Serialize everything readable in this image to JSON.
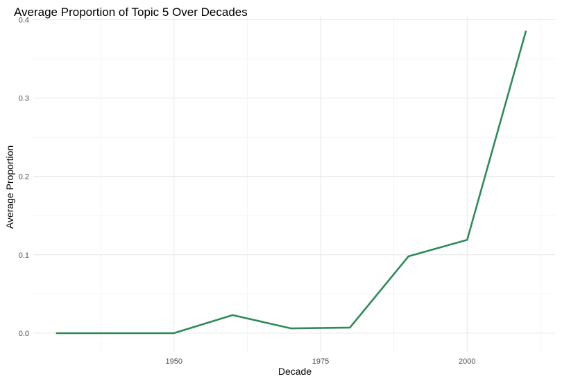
{
  "chart_data": {
    "type": "line",
    "title": "Average Proportion of Topic 5 Over Decades",
    "xlabel": "Decade",
    "ylabel": "Average Proportion",
    "x": [
      1930,
      1940,
      1950,
      1960,
      1970,
      1980,
      1990,
      2000,
      2010
    ],
    "series": [
      {
        "values": [
          0.0,
          0.0,
          0.0,
          0.023,
          0.006,
          0.007,
          0.098,
          0.119,
          0.385
        ]
      }
    ],
    "xlim": [
      1926,
      2015
    ],
    "ylim": [
      -0.024,
      0.404
    ],
    "xticks": [
      1950,
      1975,
      2000
    ],
    "xtick_labels": [
      "1950",
      "1975",
      "2000"
    ],
    "yticks": [
      0.0,
      0.1,
      0.2,
      0.3,
      0.4
    ],
    "ytick_labels": [
      "0.0",
      "0.1",
      "0.2",
      "0.3",
      "0.4"
    ],
    "grid": true,
    "line_color": "#2e8b57"
  }
}
